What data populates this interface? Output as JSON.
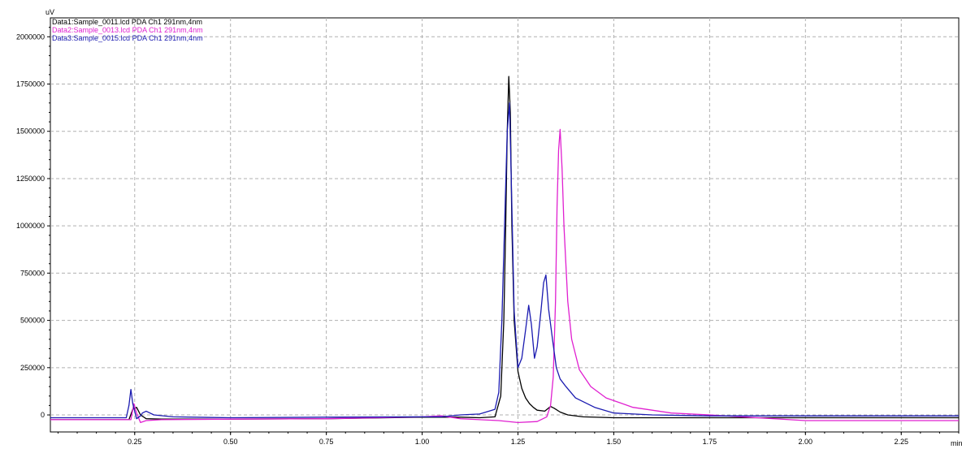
{
  "chart_data": {
    "type": "line",
    "ylabel": "uV",
    "xlabel": "min",
    "xlim": [
      0.03,
      2.4
    ],
    "ylim": [
      -90000,
      2100000
    ],
    "x_ticks": [
      0.25,
      0.5,
      0.75,
      1.0,
      1.25,
      1.5,
      1.75,
      2.0,
      2.25
    ],
    "x_tick_labels": [
      "0.25",
      "0.50",
      "0.75",
      "1.00",
      "1.25",
      "1.50",
      "1.75",
      "2.00",
      "2.25"
    ],
    "y_ticks": [
      0,
      250000,
      500000,
      750000,
      1000000,
      1250000,
      1500000,
      1750000,
      2000000
    ],
    "y_tick_labels": [
      "0",
      "250000",
      "500000",
      "750000",
      "1000000",
      "1250000",
      "1500000",
      "1750000",
      "2000000"
    ],
    "grid": true,
    "legend_position": "top-left",
    "series": [
      {
        "name": "Data1:Sample_0011.lcd PDA Ch1 291nm,4nm",
        "color": "#000000",
        "x": [
          0.03,
          0.2,
          0.235,
          0.245,
          0.255,
          0.265,
          0.28,
          0.32,
          0.5,
          0.75,
          1.0,
          1.1,
          1.15,
          1.19,
          1.205,
          1.213,
          1.218,
          1.222,
          1.226,
          1.23,
          1.234,
          1.24,
          1.25,
          1.26,
          1.27,
          1.28,
          1.29,
          1.3,
          1.32,
          1.335,
          1.345,
          1.36,
          1.38,
          1.42,
          1.5,
          1.75,
          2.0,
          2.25,
          2.4
        ],
        "y": [
          -25000,
          -25000,
          -25000,
          30000,
          40000,
          0,
          -20000,
          -22000,
          -22000,
          -20000,
          -12000,
          -12000,
          -15000,
          -10000,
          100000,
          500000,
          1000000,
          1500000,
          1790000,
          1600000,
          1000000,
          500000,
          230000,
          140000,
          90000,
          60000,
          40000,
          25000,
          20000,
          45000,
          35000,
          15000,
          0,
          -10000,
          -15000,
          -15000,
          -15000,
          -15000,
          -15000
        ]
      },
      {
        "name": "Data2:Sample_0013.lcd PDA Ch1 291nm,4nm",
        "color": "#e020d0",
        "x": [
          0.03,
          0.2,
          0.24,
          0.248,
          0.255,
          0.265,
          0.28,
          0.32,
          0.5,
          0.75,
          1.0,
          1.05,
          1.1,
          1.15,
          1.2,
          1.25,
          1.3,
          1.325,
          1.335,
          1.342,
          1.348,
          1.352,
          1.356,
          1.36,
          1.365,
          1.37,
          1.38,
          1.39,
          1.41,
          1.44,
          1.48,
          1.55,
          1.65,
          1.75,
          2.0,
          2.25,
          2.4
        ],
        "y": [
          -25000,
          -25000,
          -25000,
          60000,
          10000,
          -40000,
          -30000,
          -25000,
          -22000,
          -20000,
          -10000,
          -5000,
          -20000,
          -25000,
          -30000,
          -40000,
          -35000,
          -10000,
          50000,
          200000,
          600000,
          1100000,
          1400000,
          1510000,
          1300000,
          1000000,
          600000,
          400000,
          240000,
          150000,
          90000,
          40000,
          10000,
          0,
          -30000,
          -30000,
          -30000
        ]
      },
      {
        "name": "Data3:Sample_0015.lcd PDA Ch1 291nm,4nm",
        "color": "#1a1ab0",
        "x": [
          0.03,
          0.2,
          0.228,
          0.235,
          0.24,
          0.245,
          0.255,
          0.265,
          0.27,
          0.28,
          0.3,
          0.35,
          0.5,
          0.75,
          1.0,
          1.05,
          1.1,
          1.15,
          1.19,
          1.2,
          1.208,
          1.215,
          1.222,
          1.228,
          1.233,
          1.24,
          1.25,
          1.26,
          1.27,
          1.278,
          1.285,
          1.293,
          1.3,
          1.31,
          1.317,
          1.323,
          1.33,
          1.34,
          1.35,
          1.36,
          1.375,
          1.4,
          1.45,
          1.5,
          1.6,
          1.75,
          2.0,
          2.25,
          2.4
        ],
        "y": [
          -15000,
          -15000,
          -15000,
          50000,
          135000,
          60000,
          -20000,
          -5000,
          10000,
          20000,
          0,
          -10000,
          -15000,
          -12000,
          -10000,
          -10000,
          0,
          5000,
          30000,
          120000,
          500000,
          1000000,
          1500000,
          1650000,
          1200000,
          550000,
          250000,
          300000,
          450000,
          580000,
          480000,
          300000,
          360000,
          550000,
          700000,
          740000,
          560000,
          400000,
          250000,
          190000,
          150000,
          90000,
          40000,
          10000,
          0,
          -5000,
          -5000,
          -5000,
          -5000
        ]
      }
    ]
  }
}
